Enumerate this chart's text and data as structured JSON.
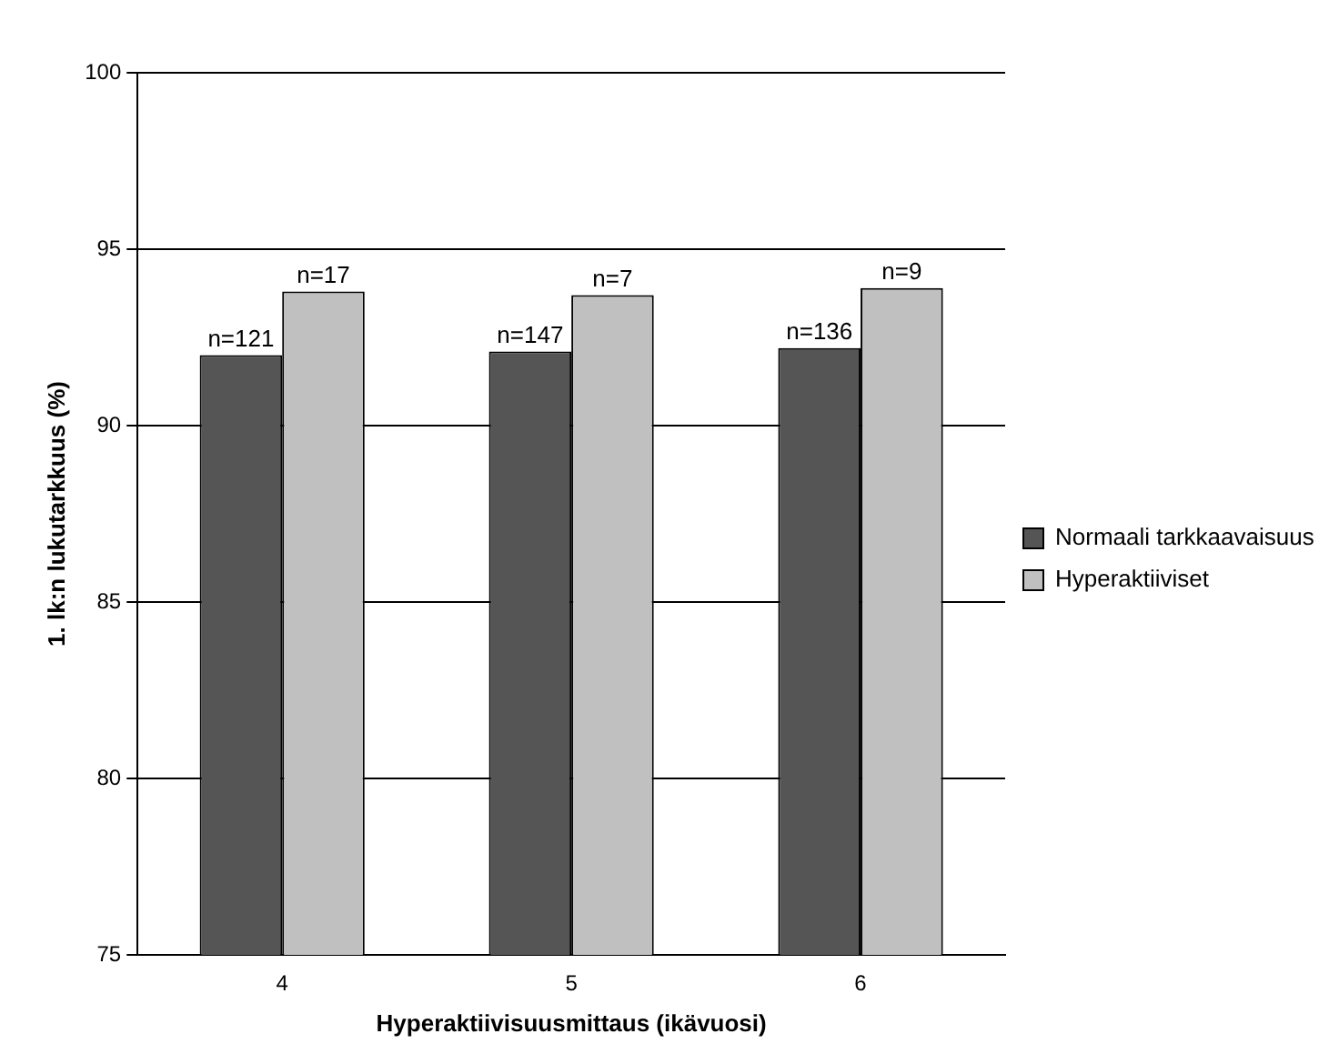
{
  "chart_data": {
    "type": "bar",
    "xlabel": "Hyperaktiivisuusmittaus (ikävuosi)",
    "ylabel": "1. lk:n lukutarkkuus (%)",
    "categories": [
      "4",
      "5",
      "6"
    ],
    "series": [
      {
        "name": "Normaali tarkkaavaisuus",
        "color": "#555555",
        "values": [
          92.0,
          92.1,
          92.2
        ]
      },
      {
        "name": "Hyperaktiiviset",
        "color": "#c0c0c0",
        "values": [
          93.8,
          93.7,
          93.9
        ]
      }
    ],
    "annotations": [
      {
        "text": "n=121",
        "x": "4",
        "y": 92.0
      },
      {
        "text": "n=17",
        "x": "4",
        "y": 93.8
      },
      {
        "text": "n=147",
        "x": "5",
        "y": 92.1
      },
      {
        "text": "n=7",
        "x": "5",
        "y": 93.7
      },
      {
        "text": "n=136",
        "x": "6",
        "y": 92.2
      },
      {
        "text": "n=9",
        "x": "6",
        "y": 93.9
      }
    ],
    "ylim": [
      75,
      100
    ],
    "yticks": [
      75,
      80,
      85,
      90,
      95,
      100
    ],
    "grid": "y",
    "legend": "right"
  }
}
